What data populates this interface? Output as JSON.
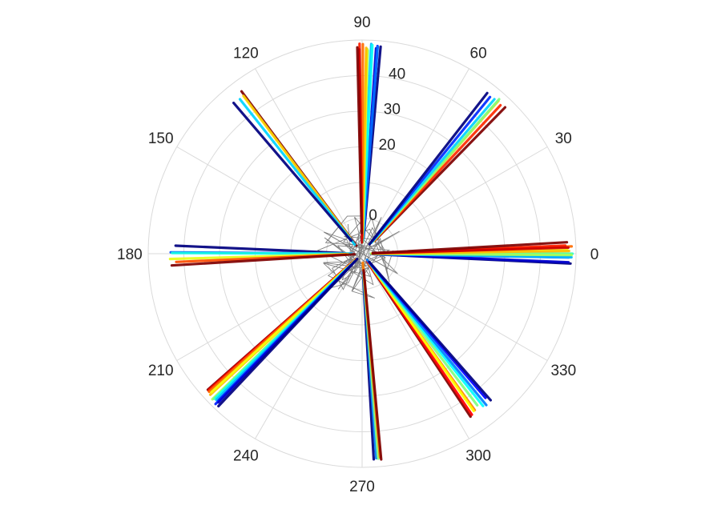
{
  "chart_data": {
    "type": "scatter",
    "subtype": "polar",
    "title": "",
    "angle_unit": "degrees",
    "theta_ticks": [
      0,
      30,
      60,
      90,
      120,
      150,
      180,
      210,
      240,
      270,
      300,
      330
    ],
    "theta_tick_labels": [
      "0",
      "30",
      "60",
      "90",
      "120",
      "150",
      "180",
      "210",
      "240",
      "270",
      "300",
      "330"
    ],
    "r_ticks": [
      0,
      10,
      20,
      30,
      40,
      50
    ],
    "r_tick_labels": [
      "0",
      "",
      "20",
      "30",
      "40",
      ""
    ],
    "r_tick_label_angle": 82,
    "rlim": [
      -10,
      50
    ],
    "grid": true,
    "colormap": "jet",
    "color_ramp": [
      "#00007f",
      "#0000ff",
      "#007fff",
      "#00ffff",
      "#7fff7f",
      "#ffff00",
      "#ff7f00",
      "#ff0000",
      "#7f0000"
    ],
    "gray_trace_color": "#555555",
    "grid_color": "#dadada",
    "spokes": [
      {
        "theta": 0,
        "r_max": 49,
        "n_traces": 14,
        "spread_deg": 5
      },
      {
        "theta": 49,
        "r_max": 48,
        "n_traces": 7,
        "spread_deg": 6
      },
      {
        "theta": 88,
        "r_max": 49,
        "n_traces": 14,
        "spread_deg": 6
      },
      {
        "theta": 128,
        "r_max": 47,
        "n_traces": 4,
        "spread_deg": 4
      },
      {
        "theta": 181,
        "r_max": 44,
        "n_traces": 6,
        "spread_deg": 6
      },
      {
        "theta": 224,
        "r_max": 49,
        "n_traces": 14,
        "spread_deg": 6
      },
      {
        "theta": 274,
        "r_max": 49,
        "n_traces": 5,
        "spread_deg": 3
      },
      {
        "theta": 307,
        "r_max": 45,
        "n_traces": 9,
        "spread_deg": 8
      }
    ]
  }
}
